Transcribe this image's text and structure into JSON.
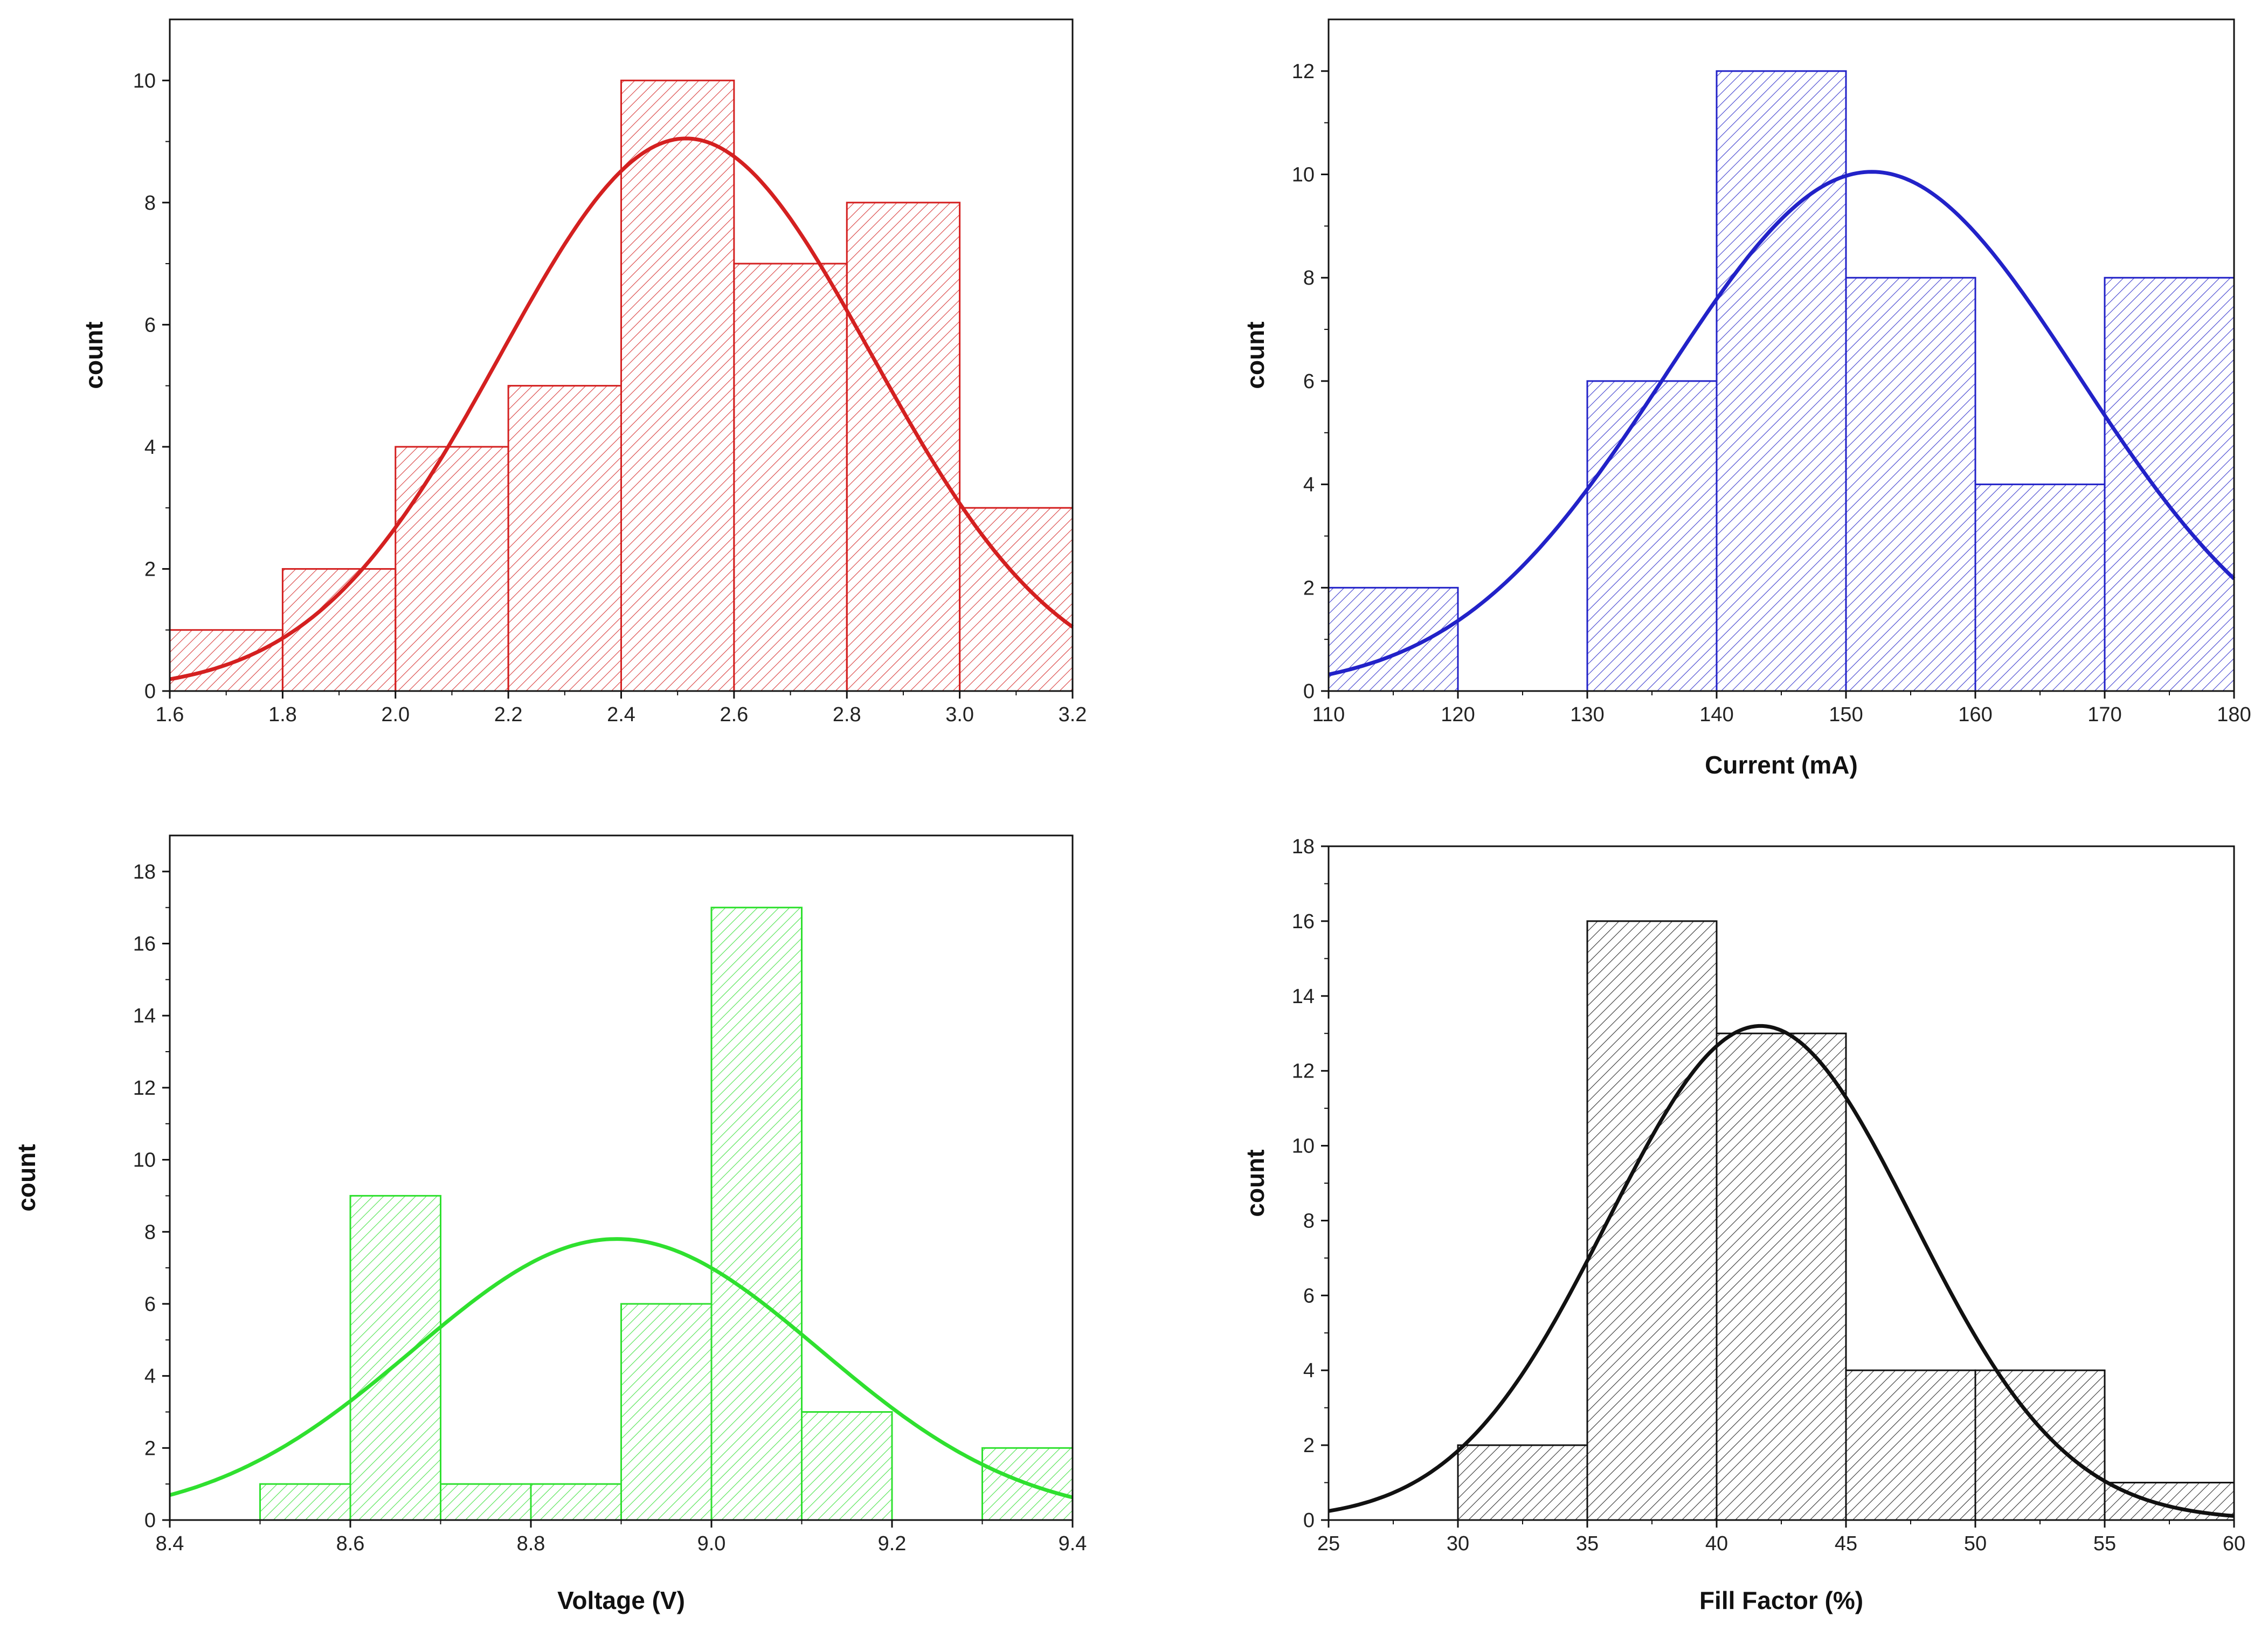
{
  "chart_data": [
    {
      "type": "bar",
      "color": "#d42020",
      "xlabel": "",
      "ylabel": "count",
      "xlim": [
        1.6,
        3.2
      ],
      "ylim": [
        0,
        11
      ],
      "xticks": [
        "1.6",
        "1.8",
        "2.0",
        "2.2",
        "2.4",
        "2.6",
        "2.8",
        "3.0",
        "3.2"
      ],
      "yticks": [
        "0",
        "2",
        "4",
        "6",
        "8",
        "10"
      ],
      "bins": [
        {
          "x0": 1.6,
          "x1": 1.8,
          "count": 1
        },
        {
          "x0": 1.8,
          "x1": 2.0,
          "count": 2
        },
        {
          "x0": 2.0,
          "x1": 2.2,
          "count": 4
        },
        {
          "x0": 2.2,
          "x1": 2.4,
          "count": 5
        },
        {
          "x0": 2.4,
          "x1": 2.6,
          "count": 10
        },
        {
          "x0": 2.6,
          "x1": 2.8,
          "count": 7
        },
        {
          "x0": 2.8,
          "x1": 3.0,
          "count": 8
        },
        {
          "x0": 3.0,
          "x1": 3.2,
          "count": 3
        }
      ],
      "fit": {
        "type": "gaussian",
        "mean": 2.515,
        "sd": 0.33,
        "peak": 9.05
      }
    },
    {
      "type": "bar",
      "color": "#2222c8",
      "xlabel": "Current (mA)",
      "ylabel": "count",
      "xlim": [
        110,
        180
      ],
      "ylim": [
        0,
        13
      ],
      "xticks": [
        "110",
        "120",
        "130",
        "140",
        "150",
        "160",
        "170",
        "180"
      ],
      "yticks": [
        "0",
        "2",
        "4",
        "6",
        "8",
        "10",
        "12"
      ],
      "bins": [
        {
          "x0": 110,
          "x1": 120,
          "count": 2
        },
        {
          "x0": 120,
          "x1": 130,
          "count": 0
        },
        {
          "x0": 130,
          "x1": 140,
          "count": 6
        },
        {
          "x0": 140,
          "x1": 150,
          "count": 12
        },
        {
          "x0": 150,
          "x1": 160,
          "count": 8
        },
        {
          "x0": 160,
          "x1": 170,
          "count": 4
        },
        {
          "x0": 170,
          "x1": 180,
          "count": 8
        }
      ],
      "fit": {
        "type": "gaussian",
        "mean": 152.0,
        "sd": 16.0,
        "peak": 10.05
      }
    },
    {
      "type": "bar",
      "color": "#2fe02f",
      "xlabel": "Voltage (V)",
      "ylabel": "count",
      "xlim": [
        8.4,
        9.4
      ],
      "ylim": [
        0,
        19
      ],
      "xticks": [
        "8.4",
        "8.6",
        "8.8",
        "9.0",
        "9.2",
        "9.4"
      ],
      "yticks": [
        "0",
        "2",
        "4",
        "6",
        "8",
        "10",
        "12",
        "14",
        "16",
        "18"
      ],
      "bins": [
        {
          "x0": 8.5,
          "x1": 8.6,
          "count": 1
        },
        {
          "x0": 8.6,
          "x1": 8.7,
          "count": 9
        },
        {
          "x0": 8.7,
          "x1": 8.8,
          "count": 1
        },
        {
          "x0": 8.8,
          "x1": 8.9,
          "count": 1
        },
        {
          "x0": 8.9,
          "x1": 9.0,
          "count": 6
        },
        {
          "x0": 9.0,
          "x1": 9.1,
          "count": 17
        },
        {
          "x0": 9.1,
          "x1": 9.2,
          "count": 3
        },
        {
          "x0": 9.3,
          "x1": 9.4,
          "count": 2
        }
      ],
      "fit": {
        "type": "gaussian",
        "mean": 8.895,
        "sd": 0.225,
        "peak": 7.8
      }
    },
    {
      "type": "bar",
      "color": "#111111",
      "xlabel": "Fill Factor (%)",
      "ylabel": "count",
      "xlim": [
        25,
        60
      ],
      "ylim": [
        0,
        18
      ],
      "xticks": [
        "25",
        "30",
        "35",
        "40",
        "45",
        "50",
        "55",
        "60"
      ],
      "yticks": [
        "0",
        "2",
        "4",
        "6",
        "8",
        "10",
        "12",
        "14",
        "16",
        "18"
      ],
      "bins": [
        {
          "x0": 30,
          "x1": 35,
          "count": 2
        },
        {
          "x0": 35,
          "x1": 40,
          "count": 16
        },
        {
          "x0": 40,
          "x1": 45,
          "count": 13
        },
        {
          "x0": 45,
          "x1": 50,
          "count": 4
        },
        {
          "x0": 50,
          "x1": 55,
          "count": 4
        },
        {
          "x0": 55,
          "x1": 60,
          "count": 1
        }
      ],
      "fit": {
        "type": "gaussian",
        "mean": 41.7,
        "sd": 5.9,
        "peak": 13.2
      }
    }
  ]
}
